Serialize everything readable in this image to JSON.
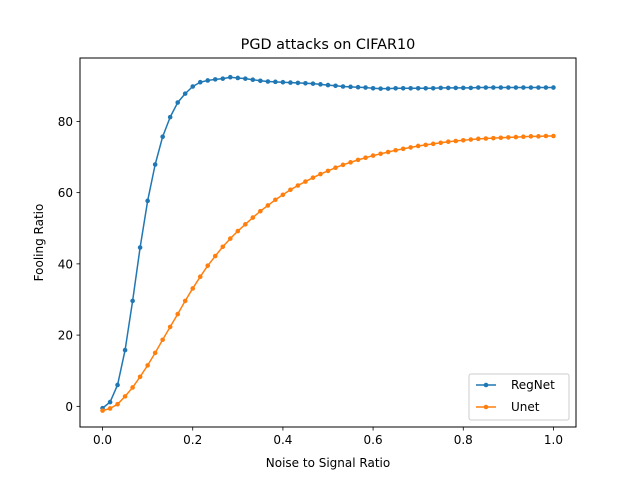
{
  "chart_data": {
    "type": "line",
    "title": "PGD attacks on CIFAR10",
    "xlabel": "Noise to Signal Ratio",
    "ylabel": "Fooling Ratio",
    "xlim": [
      -0.05,
      1.05
    ],
    "ylim": [
      -5.8,
      97.8
    ],
    "xticks": [
      "0.0",
      "0.2",
      "0.4",
      "0.6",
      "0.8",
      "1.0"
    ],
    "yticks": [
      "0",
      "20",
      "40",
      "60",
      "80"
    ],
    "grid": false,
    "legend_position": "lower-right",
    "x": [
      0.0,
      0.0167,
      0.0333,
      0.05,
      0.0667,
      0.0833,
      0.1,
      0.1167,
      0.1333,
      0.15,
      0.1667,
      0.1833,
      0.2,
      0.2167,
      0.2333,
      0.25,
      0.2667,
      0.2833,
      0.3,
      0.3167,
      0.3333,
      0.35,
      0.3667,
      0.3833,
      0.4,
      0.4167,
      0.4333,
      0.45,
      0.4667,
      0.4833,
      0.5,
      0.5167,
      0.5333,
      0.55,
      0.5667,
      0.5833,
      0.6,
      0.6167,
      0.6333,
      0.65,
      0.6667,
      0.6833,
      0.7,
      0.7167,
      0.7333,
      0.75,
      0.7667,
      0.7833,
      0.8,
      0.8167,
      0.8333,
      0.85,
      0.8667,
      0.8833,
      0.9,
      0.9167,
      0.9333,
      0.95,
      0.9667,
      0.9833,
      1.0
    ],
    "series": [
      {
        "name": "RegNet",
        "color": "#1f77b4",
        "values": [
          -0.5,
          1.2,
          6.0,
          15.8,
          29.6,
          44.6,
          57.7,
          67.9,
          75.7,
          81.2,
          85.3,
          87.8,
          89.8,
          91.0,
          91.5,
          91.8,
          92.0,
          92.4,
          92.2,
          92.0,
          91.7,
          91.4,
          91.2,
          91.1,
          91.0,
          90.9,
          90.8,
          90.7,
          90.6,
          90.4,
          90.2,
          90.0,
          89.8,
          89.7,
          89.6,
          89.5,
          89.3,
          89.2,
          89.2,
          89.3,
          89.3,
          89.3,
          89.3,
          89.3,
          89.3,
          89.4,
          89.4,
          89.4,
          89.4,
          89.4,
          89.5,
          89.5,
          89.5,
          89.5,
          89.5,
          89.5,
          89.5,
          89.5,
          89.5,
          89.5,
          89.5
        ]
      },
      {
        "name": "Unet",
        "color": "#ff7f0e",
        "values": [
          -1.2,
          -0.6,
          0.6,
          2.8,
          5.3,
          8.3,
          11.5,
          15.0,
          18.7,
          22.3,
          25.9,
          29.6,
          33.1,
          36.4,
          39.5,
          42.2,
          44.8,
          47.1,
          49.2,
          51.1,
          53.0,
          54.8,
          56.4,
          58.0,
          59.4,
          60.8,
          62.0,
          63.1,
          64.2,
          65.2,
          66.1,
          67.0,
          67.8,
          68.5,
          69.2,
          69.8,
          70.4,
          70.9,
          71.4,
          71.9,
          72.3,
          72.7,
          73.1,
          73.4,
          73.7,
          74.0,
          74.3,
          74.5,
          74.7,
          74.9,
          75.1,
          75.2,
          75.3,
          75.4,
          75.5,
          75.6,
          75.7,
          75.8,
          75.8,
          75.9,
          75.9
        ]
      }
    ]
  }
}
